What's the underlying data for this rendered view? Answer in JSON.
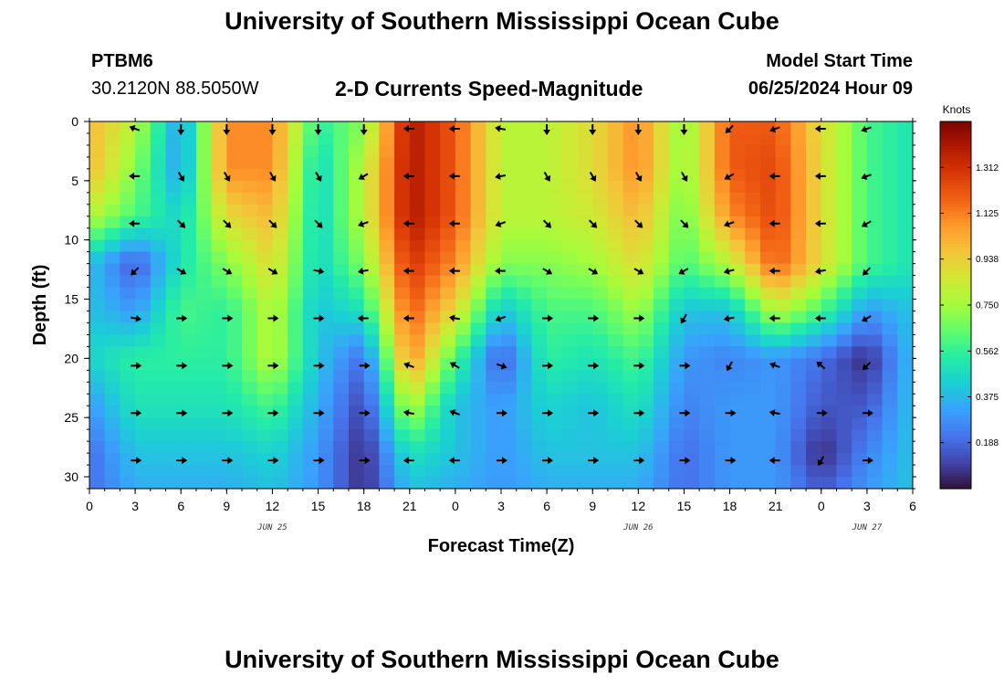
{
  "header": {
    "title": "University of Southern Mississippi Ocean Cube",
    "station_id": "PTBM6",
    "station_coords": "30.2120N  88.5050W",
    "subtitle": "2-D Currents Speed-Magnitude",
    "model_label": "Model Start Time",
    "model_time": "06/25/2024 Hour 09"
  },
  "footer": {
    "title": "University of Southern Mississippi Ocean Cube"
  },
  "chart_data": {
    "type": "heatmap",
    "title": "2-D Currents Speed-Magnitude",
    "xlabel": "Forecast Time(Z)",
    "ylabel": "Depth (ft)",
    "x_tick_labels": [
      "0",
      "3",
      "6",
      "9",
      "12",
      "15",
      "18",
      "21",
      "0",
      "3",
      "6",
      "9",
      "12",
      "15",
      "18",
      "21",
      "0",
      "3",
      "6"
    ],
    "x_hours": [
      0,
      3,
      6,
      9,
      12,
      15,
      18,
      21,
      24,
      27,
      30,
      33,
      36,
      39,
      42,
      45,
      48,
      51,
      54
    ],
    "xlim": [
      0,
      54
    ],
    "date_labels": [
      {
        "label": "JUN 25",
        "hour": 12
      },
      {
        "label": "JUN 26",
        "hour": 36
      },
      {
        "label": "JUN 27",
        "hour": 51
      }
    ],
    "y_tick_labels": [
      "0",
      "5",
      "10",
      "15",
      "20",
      "25",
      "30"
    ],
    "y_ticks": [
      0,
      5,
      10,
      15,
      20,
      25,
      30
    ],
    "ylim": [
      0,
      31
    ],
    "colorbar": {
      "label": "Knots",
      "ticks": [
        "1.312",
        "1.125",
        "0.938",
        "0.750",
        "0.562",
        "0.375",
        "0.188"
      ],
      "tick_values": [
        1.312,
        1.125,
        0.938,
        0.75,
        0.562,
        0.375,
        0.188
      ],
      "range": [
        0,
        1.5
      ],
      "colors": [
        "#30123b",
        "#4145ab",
        "#4675ed",
        "#39a2fc",
        "#1bcfd4",
        "#24eca6",
        "#61fc6c",
        "#a4fc3b",
        "#d1e834",
        "#f3c63a",
        "#fe9b2d",
        "#f36315",
        "#d93806",
        "#b11901",
        "#7a0402"
      ]
    },
    "speed_grid": {
      "hours": [
        0,
        3,
        6,
        9,
        12,
        15,
        18,
        21,
        24,
        27,
        30,
        33,
        36,
        39,
        42,
        45,
        48,
        51,
        54
      ],
      "depths": [
        0,
        4,
        8,
        12,
        16,
        20,
        24,
        28,
        31
      ],
      "values": [
        [
          1.0,
          0.8,
          0.3,
          1.1,
          1.1,
          0.55,
          0.7,
          1.4,
          1.2,
          0.8,
          0.8,
          0.9,
          1.1,
          0.7,
          1.2,
          1.2,
          0.9,
          0.6,
          0.5
        ],
        [
          1.0,
          0.7,
          0.3,
          1.1,
          1.1,
          0.45,
          0.8,
          1.4,
          1.2,
          0.8,
          0.8,
          0.9,
          1.1,
          0.7,
          1.2,
          1.25,
          0.9,
          0.6,
          0.5
        ],
        [
          0.8,
          0.6,
          0.45,
          0.9,
          1.0,
          0.45,
          0.8,
          1.4,
          1.2,
          0.8,
          0.8,
          0.85,
          1.0,
          0.65,
          1.1,
          1.25,
          0.9,
          0.6,
          0.5
        ],
        [
          0.4,
          0.15,
          0.5,
          0.7,
          0.9,
          0.45,
          0.7,
          1.3,
          1.1,
          0.7,
          0.7,
          0.75,
          0.9,
          0.6,
          0.8,
          1.2,
          0.9,
          0.6,
          0.5
        ],
        [
          0.4,
          0.3,
          0.6,
          0.55,
          0.8,
          0.4,
          0.5,
          1.2,
          0.9,
          0.4,
          0.6,
          0.6,
          0.75,
          0.4,
          0.4,
          0.8,
          0.6,
          0.3,
          0.4
        ],
        [
          0.45,
          0.55,
          0.55,
          0.55,
          0.8,
          0.4,
          0.2,
          1.1,
          0.6,
          0.15,
          0.55,
          0.5,
          0.6,
          0.3,
          0.25,
          0.3,
          0.2,
          0.05,
          0.4
        ],
        [
          0.3,
          0.5,
          0.5,
          0.5,
          0.6,
          0.35,
          0.1,
          0.8,
          0.4,
          0.3,
          0.45,
          0.4,
          0.5,
          0.25,
          0.3,
          0.3,
          0.15,
          0.15,
          0.4
        ],
        [
          0.2,
          0.4,
          0.4,
          0.4,
          0.45,
          0.3,
          0.05,
          0.5,
          0.4,
          0.3,
          0.4,
          0.4,
          0.4,
          0.2,
          0.3,
          0.3,
          0.05,
          0.25,
          0.4
        ],
        [
          0.2,
          0.35,
          0.35,
          0.35,
          0.4,
          0.3,
          0.05,
          0.4,
          0.35,
          0.3,
          0.35,
          0.35,
          0.35,
          0.2,
          0.3,
          0.3,
          0.15,
          0.3,
          0.4
        ]
      ]
    },
    "vector_rows_depth": [
      0,
      4,
      8,
      12,
      16,
      20,
      24,
      28
    ],
    "vector_hours": [
      3,
      6,
      9,
      12,
      15,
      18,
      21,
      24,
      27,
      30,
      33,
      36,
      39,
      42,
      45,
      48,
      51
    ],
    "vector_directions_deg": [
      [
        200,
        90,
        90,
        90,
        90,
        90,
        180,
        180,
        190,
        90,
        90,
        90,
        90,
        135,
        160,
        180,
        160
      ],
      [
        180,
        60,
        60,
        60,
        60,
        150,
        180,
        180,
        170,
        60,
        60,
        60,
        60,
        150,
        180,
        180,
        160
      ],
      [
        180,
        45,
        45,
        45,
        45,
        160,
        180,
        180,
        160,
        45,
        45,
        45,
        45,
        160,
        180,
        180,
        150
      ],
      [
        135,
        30,
        30,
        30,
        10,
        170,
        180,
        180,
        180,
        30,
        30,
        30,
        150,
        165,
        180,
        170,
        135
      ],
      [
        10,
        0,
        0,
        0,
        0,
        180,
        180,
        190,
        160,
        0,
        0,
        0,
        120,
        170,
        180,
        180,
        150
      ],
      [
        0,
        0,
        0,
        0,
        0,
        0,
        200,
        210,
        20,
        0,
        0,
        0,
        0,
        120,
        200,
        220,
        135
      ],
      [
        0,
        0,
        0,
        0,
        0,
        0,
        190,
        200,
        0,
        0,
        0,
        0,
        0,
        0,
        190,
        0,
        0
      ],
      [
        0,
        0,
        0,
        0,
        0,
        0,
        180,
        180,
        0,
        0,
        0,
        0,
        0,
        0,
        180,
        120,
        0
      ]
    ]
  }
}
